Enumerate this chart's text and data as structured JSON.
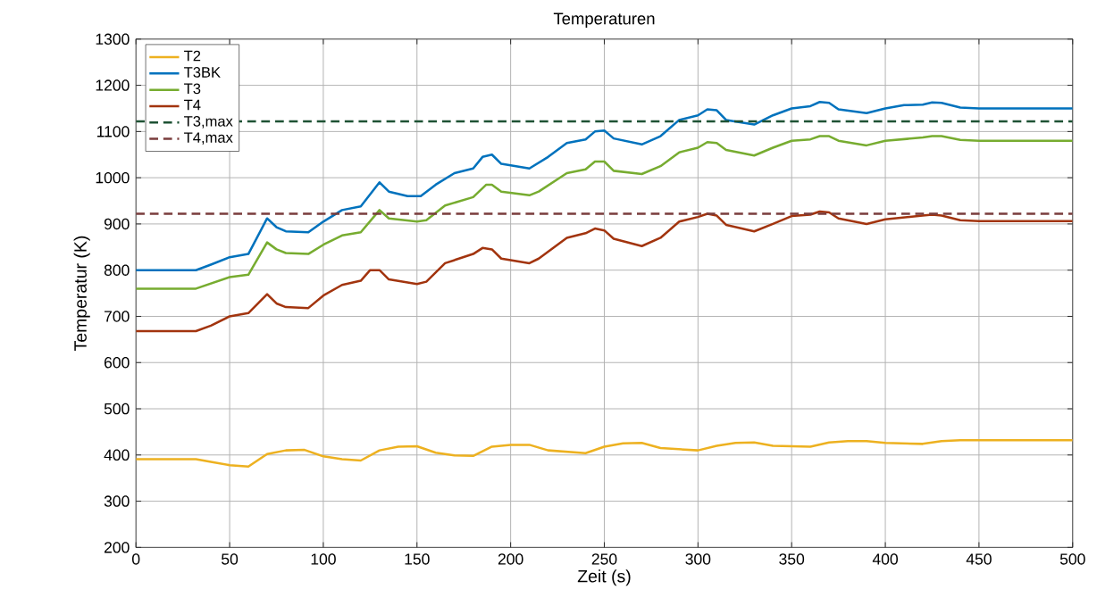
{
  "chart_data": {
    "type": "line",
    "title": "Temperaturen",
    "xlabel": "Zeit (s)",
    "ylabel": "Temperatur (K)",
    "xlim": [
      0,
      500
    ],
    "xticks": [
      0,
      50,
      100,
      150,
      200,
      250,
      300,
      350,
      400,
      450,
      500
    ],
    "ylim": [
      200,
      1300
    ],
    "yticks": [
      200,
      300,
      400,
      500,
      600,
      700,
      800,
      900,
      1000,
      1100,
      1200,
      1300
    ],
    "grid": true,
    "legend": "top left",
    "line_style": "solid",
    "marker": "none",
    "series": [
      {
        "name": "T2",
        "color": "#edb120",
        "x": [
          0,
          32,
          40,
          50,
          60,
          70,
          80,
          90,
          100,
          110,
          120,
          130,
          140,
          150,
          160,
          170,
          180,
          190,
          200,
          210,
          220,
          240,
          250,
          260,
          270,
          280,
          300,
          310,
          320,
          330,
          340,
          360,
          370,
          380,
          390,
          400,
          420,
          430,
          440,
          500
        ],
        "values": [
          391,
          391,
          385,
          378,
          375,
          402,
          410,
          411,
          397,
          391,
          388,
          410,
          418,
          419,
          405,
          399,
          398,
          418,
          422,
          422,
          410,
          404,
          418,
          425,
          426,
          415,
          410,
          420,
          426,
          427,
          420,
          418,
          427,
          430,
          430,
          426,
          424,
          430,
          432,
          432
        ]
      },
      {
        "name": "T3BK",
        "color": "#0072bd",
        "x": [
          0,
          32,
          40,
          50,
          60,
          70,
          75,
          80,
          92,
          100,
          110,
          120,
          130,
          135,
          145,
          152,
          160,
          170,
          180,
          185,
          190,
          195,
          210,
          220,
          230,
          240,
          245,
          250,
          255,
          270,
          280,
          290,
          300,
          305,
          310,
          315,
          330,
          340,
          350,
          360,
          365,
          370,
          375,
          390,
          400,
          410,
          420,
          425,
          430,
          440,
          450,
          500
        ],
        "values": [
          800,
          800,
          812,
          828,
          835,
          912,
          893,
          884,
          882,
          905,
          930,
          938,
          990,
          970,
          960,
          960,
          985,
          1010,
          1020,
          1045,
          1050,
          1030,
          1020,
          1045,
          1075,
          1083,
          1100,
          1102,
          1085,
          1072,
          1090,
          1125,
          1135,
          1148,
          1146,
          1125,
          1115,
          1135,
          1150,
          1155,
          1164,
          1162,
          1148,
          1140,
          1150,
          1157,
          1158,
          1163,
          1162,
          1152,
          1150,
          1150
        ]
      },
      {
        "name": "T3",
        "color": "#77ac30",
        "x": [
          0,
          32,
          50,
          60,
          70,
          75,
          80,
          92,
          100,
          110,
          120,
          130,
          135,
          150,
          155,
          165,
          180,
          187,
          190,
          195,
          210,
          215,
          230,
          240,
          245,
          250,
          255,
          270,
          280,
          290,
          300,
          305,
          310,
          315,
          330,
          340,
          350,
          360,
          365,
          370,
          375,
          390,
          400,
          420,
          425,
          430,
          440,
          450,
          500
        ],
        "values": [
          760,
          760,
          785,
          790,
          860,
          845,
          837,
          835,
          855,
          875,
          882,
          930,
          912,
          905,
          908,
          940,
          958,
          985,
          985,
          970,
          962,
          970,
          1010,
          1018,
          1035,
          1035,
          1015,
          1008,
          1025,
          1055,
          1065,
          1077,
          1075,
          1060,
          1048,
          1065,
          1080,
          1083,
          1090,
          1090,
          1080,
          1070,
          1080,
          1087,
          1090,
          1090,
          1082,
          1080,
          1080
        ]
      },
      {
        "name": "T4",
        "color": "#a2340e",
        "x": [
          0,
          32,
          40,
          50,
          60,
          70,
          75,
          80,
          92,
          100,
          110,
          120,
          125,
          130,
          135,
          150,
          155,
          165,
          180,
          185,
          190,
          195,
          210,
          215,
          230,
          240,
          245,
          250,
          255,
          270,
          280,
          290,
          300,
          305,
          310,
          315,
          330,
          340,
          350,
          360,
          365,
          370,
          375,
          390,
          400,
          420,
          425,
          430,
          440,
          450,
          500
        ],
        "values": [
          668,
          668,
          680,
          700,
          707,
          748,
          728,
          720,
          718,
          745,
          768,
          777,
          800,
          800,
          780,
          770,
          775,
          815,
          835,
          848,
          845,
          825,
          815,
          825,
          870,
          880,
          890,
          886,
          868,
          852,
          870,
          905,
          915,
          922,
          918,
          898,
          884,
          900,
          917,
          920,
          927,
          925,
          912,
          900,
          910,
          918,
          920,
          918,
          908,
          906,
          906
        ]
      }
    ],
    "ref_lines": [
      {
        "axis": "y",
        "value": 1122,
        "label": "T3,max",
        "color": "#1e5234",
        "line_style": "dashed"
      },
      {
        "axis": "y",
        "value": 922,
        "label": "T4,max",
        "color": "#7a3c3c",
        "line_style": "dashed"
      }
    ]
  }
}
